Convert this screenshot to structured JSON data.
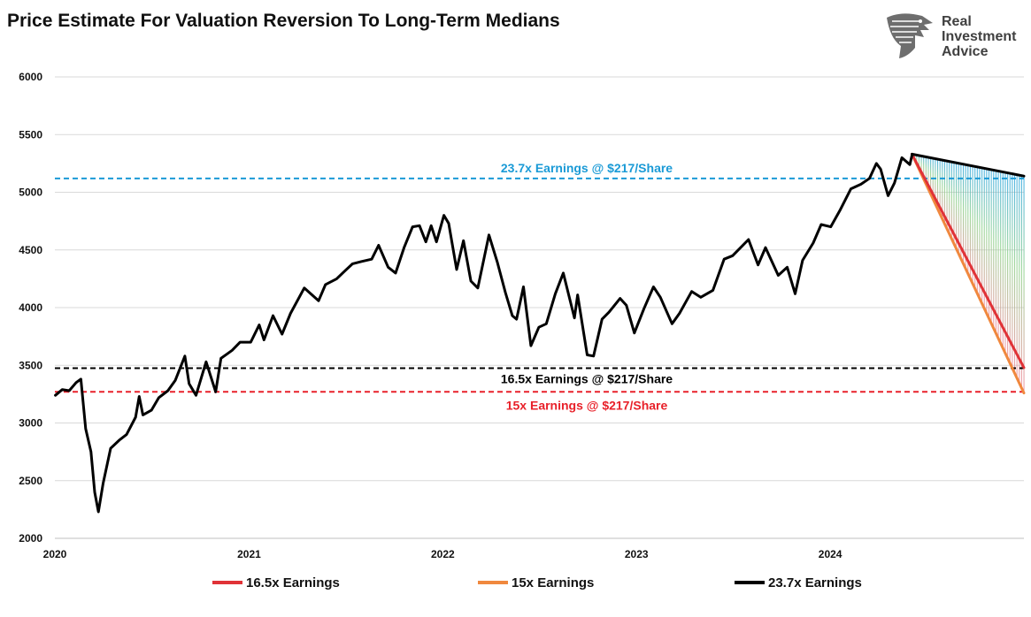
{
  "header": {
    "title": "Price Estimate For Valuation Reversion To Long-Term Medians"
  },
  "logo": {
    "line1": "Real",
    "line2": "Investment",
    "line3": "Advice",
    "icon": "eagle-head-icon"
  },
  "colors": {
    "price": "#000000",
    "line_23_7x": "#1a9ad6",
    "line_16_5x": "#000000",
    "line_15x": "#e8212a",
    "proj_16_5x": "#e03237",
    "proj_15x": "#f0883e",
    "proj_23_7x": "#000000"
  },
  "chart_data": {
    "type": "line",
    "title": "Price Estimate For Valuation Reversion To Long-Term Medians",
    "xlabel": "",
    "ylabel": "",
    "ylim": [
      2000,
      6000
    ],
    "xlim": [
      "2020-01-01",
      "2024-12-31"
    ],
    "grid": true,
    "y_ticks": [
      2000,
      2500,
      3000,
      3500,
      4000,
      4500,
      5000,
      5500,
      6000
    ],
    "x_ticks": [
      {
        "date": "2020-01-01",
        "label": "2020"
      },
      {
        "date": "2021-01-01",
        "label": "2021"
      },
      {
        "date": "2022-01-01",
        "label": "2022"
      },
      {
        "date": "2023-01-01",
        "label": "2023"
      },
      {
        "date": "2024-01-01",
        "label": "2024"
      }
    ],
    "series": [
      {
        "key": "price",
        "points": [
          [
            "2020-01-02",
            3240
          ],
          [
            "2020-01-15",
            3290
          ],
          [
            "2020-01-28",
            3280
          ],
          [
            "2020-02-10",
            3350
          ],
          [
            "2020-02-19",
            3380
          ],
          [
            "2020-02-28",
            2950
          ],
          [
            "2020-03-09",
            2750
          ],
          [
            "2020-03-16",
            2400
          ],
          [
            "2020-03-23",
            2230
          ],
          [
            "2020-04-01",
            2480
          ],
          [
            "2020-04-15",
            2780
          ],
          [
            "2020-05-01",
            2850
          ],
          [
            "2020-05-15",
            2900
          ],
          [
            "2020-06-01",
            3050
          ],
          [
            "2020-06-08",
            3230
          ],
          [
            "2020-06-15",
            3070
          ],
          [
            "2020-07-01",
            3110
          ],
          [
            "2020-07-15",
            3220
          ],
          [
            "2020-08-01",
            3280
          ],
          [
            "2020-08-15",
            3370
          ],
          [
            "2020-09-02",
            3580
          ],
          [
            "2020-09-10",
            3340
          ],
          [
            "2020-09-23",
            3240
          ],
          [
            "2020-10-12",
            3530
          ],
          [
            "2020-10-30",
            3270
          ],
          [
            "2020-11-09",
            3560
          ],
          [
            "2020-11-30",
            3630
          ],
          [
            "2020-12-15",
            3700
          ],
          [
            "2021-01-04",
            3700
          ],
          [
            "2021-01-20",
            3850
          ],
          [
            "2021-01-29",
            3720
          ],
          [
            "2021-02-15",
            3930
          ],
          [
            "2021-03-04",
            3770
          ],
          [
            "2021-03-20",
            3950
          ],
          [
            "2021-04-15",
            4170
          ],
          [
            "2021-05-12",
            4060
          ],
          [
            "2021-05-25",
            4200
          ],
          [
            "2021-06-15",
            4250
          ],
          [
            "2021-07-01",
            4320
          ],
          [
            "2021-07-15",
            4380
          ],
          [
            "2021-08-01",
            4400
          ],
          [
            "2021-08-20",
            4420
          ],
          [
            "2021-09-02",
            4540
          ],
          [
            "2021-09-20",
            4350
          ],
          [
            "2021-10-04",
            4300
          ],
          [
            "2021-10-20",
            4520
          ],
          [
            "2021-11-05",
            4700
          ],
          [
            "2021-11-18",
            4710
          ],
          [
            "2021-11-30",
            4570
          ],
          [
            "2021-12-10",
            4710
          ],
          [
            "2021-12-20",
            4570
          ],
          [
            "2022-01-03",
            4800
          ],
          [
            "2022-01-12",
            4730
          ],
          [
            "2022-01-27",
            4330
          ],
          [
            "2022-02-09",
            4580
          ],
          [
            "2022-02-23",
            4230
          ],
          [
            "2022-03-08",
            4170
          ],
          [
            "2022-03-29",
            4630
          ],
          [
            "2022-04-14",
            4390
          ],
          [
            "2022-04-29",
            4130
          ],
          [
            "2022-05-12",
            3930
          ],
          [
            "2022-05-20",
            3900
          ],
          [
            "2022-06-02",
            4180
          ],
          [
            "2022-06-16",
            3670
          ],
          [
            "2022-07-01",
            3830
          ],
          [
            "2022-07-15",
            3860
          ],
          [
            "2022-08-01",
            4120
          ],
          [
            "2022-08-16",
            4300
          ],
          [
            "2022-09-06",
            3910
          ],
          [
            "2022-09-12",
            4110
          ],
          [
            "2022-09-30",
            3590
          ],
          [
            "2022-10-12",
            3580
          ],
          [
            "2022-10-28",
            3900
          ],
          [
            "2022-11-10",
            3960
          ],
          [
            "2022-12-01",
            4080
          ],
          [
            "2022-12-13",
            4020
          ],
          [
            "2022-12-28",
            3780
          ],
          [
            "2023-01-15",
            3990
          ],
          [
            "2023-02-02",
            4180
          ],
          [
            "2023-02-15",
            4090
          ],
          [
            "2023-03-09",
            3860
          ],
          [
            "2023-03-23",
            3950
          ],
          [
            "2023-04-15",
            4140
          ],
          [
            "2023-05-02",
            4090
          ],
          [
            "2023-05-25",
            4150
          ],
          [
            "2023-06-15",
            4420
          ],
          [
            "2023-07-01",
            4450
          ],
          [
            "2023-07-31",
            4590
          ],
          [
            "2023-08-18",
            4370
          ],
          [
            "2023-09-01",
            4520
          ],
          [
            "2023-09-25",
            4280
          ],
          [
            "2023-10-12",
            4350
          ],
          [
            "2023-10-27",
            4120
          ],
          [
            "2023-11-10",
            4410
          ],
          [
            "2023-11-30",
            4560
          ],
          [
            "2023-12-15",
            4720
          ],
          [
            "2024-01-02",
            4700
          ],
          [
            "2024-01-19",
            4840
          ],
          [
            "2024-02-09",
            5030
          ],
          [
            "2024-02-28",
            5070
          ],
          [
            "2024-03-15",
            5120
          ],
          [
            "2024-03-28",
            5250
          ],
          [
            "2024-04-05",
            5200
          ],
          [
            "2024-04-19",
            4970
          ],
          [
            "2024-05-01",
            5080
          ],
          [
            "2024-05-15",
            5300
          ],
          [
            "2024-05-30",
            5240
          ],
          [
            "2024-06-03",
            5320
          ]
        ]
      },
      {
        "key": "proj_23_7x",
        "points": [
          [
            "2024-06-03",
            5330
          ],
          [
            "2024-12-31",
            5140
          ]
        ]
      },
      {
        "key": "proj_16_5x",
        "points": [
          [
            "2024-06-03",
            5330
          ],
          [
            "2024-12-31",
            3480
          ]
        ]
      },
      {
        "key": "proj_15x",
        "points": [
          [
            "2024-06-03",
            5330
          ],
          [
            "2024-12-31",
            3260
          ]
        ]
      }
    ],
    "reference_lines": [
      {
        "key": "line_23_7x",
        "y": 5120,
        "label": "23.7x Earnings @ $217/Share"
      },
      {
        "key": "line_16_5x",
        "y": 3475,
        "label": "16.5x Earnings @ $217/Share"
      },
      {
        "key": "line_15x",
        "y": 3270,
        "label": "15x Earnings @ $217/Share"
      }
    ],
    "legend": {
      "position": "bottom",
      "entries": [
        {
          "key": "proj_16_5x",
          "name": "16.5x Earnings"
        },
        {
          "key": "proj_15x",
          "name": "15x Earnings"
        },
        {
          "key": "proj_23_7x",
          "name": "23.7x Earnings"
        }
      ]
    }
  }
}
